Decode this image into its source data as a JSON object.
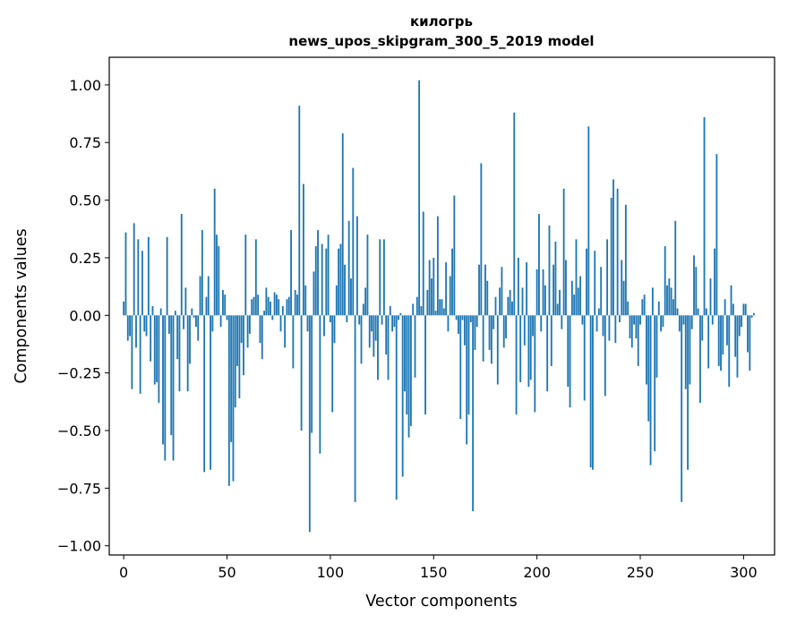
{
  "chart_data": {
    "type": "bar",
    "title": "килогрь",
    "subtitle": "news_upos_skipgram_300_5_2019 model",
    "xlabel": "Vector components",
    "ylabel": "Components values",
    "xlim": [
      -7,
      315
    ],
    "ylim": [
      -1.04,
      1.12
    ],
    "xticks": [
      0,
      50,
      100,
      150,
      200,
      250,
      300
    ],
    "xtick_labels": [
      "0",
      "50",
      "100",
      "150",
      "200",
      "250",
      "300"
    ],
    "yticks": [
      1.0,
      0.75,
      0.5,
      0.25,
      0.0,
      -0.25,
      -0.5,
      -0.75,
      -1.0
    ],
    "ytick_labels": [
      "1.00",
      "0.75",
      "0.50",
      "0.25",
      "0.00",
      "−0.25",
      "−0.50",
      "−0.75",
      "−1.00"
    ],
    "bar_color": "#1f77b4",
    "grid": false,
    "series": [
      {
        "name": "килогрь",
        "x_start": 0,
        "values": [
          0.06,
          0.36,
          -0.11,
          -0.09,
          -0.32,
          0.4,
          -0.14,
          0.33,
          -0.34,
          0.28,
          -0.07,
          -0.09,
          0.34,
          -0.2,
          0.04,
          -0.3,
          -0.29,
          -0.38,
          0.03,
          -0.56,
          -0.63,
          0.34,
          -0.08,
          -0.52,
          -0.63,
          0.02,
          -0.19,
          -0.33,
          0.44,
          -0.06,
          0.12,
          -0.33,
          -0.21,
          0.03,
          -0.01,
          -0.05,
          -0.11,
          0.17,
          0.37,
          -0.68,
          0.08,
          0.17,
          -0.67,
          -0.07,
          0.55,
          0.35,
          0.3,
          -0.05,
          0.11,
          0.09,
          -0.02,
          -0.74,
          -0.55,
          -0.72,
          -0.4,
          -0.22,
          -0.36,
          -0.12,
          -0.26,
          0.35,
          -0.14,
          -0.08,
          0.07,
          0.08,
          0.33,
          0.09,
          -0.12,
          -0.19,
          0.02,
          0.12,
          0.08,
          0.06,
          -0.02,
          0.1,
          0.09,
          0.07,
          -0.07,
          0.04,
          -0.14,
          0.07,
          0.08,
          0.37,
          -0.23,
          0.11,
          0.09,
          0.91,
          -0.5,
          0.57,
          0.13,
          -0.07,
          -0.94,
          -0.51,
          0.19,
          0.3,
          0.37,
          -0.6,
          0.31,
          -0.09,
          0.29,
          0.35,
          -0.03,
          -0.42,
          -0.12,
          0.13,
          0.29,
          0.31,
          0.79,
          0.22,
          -0.03,
          0.41,
          0.16,
          0.64,
          -0.81,
          0.43,
          -0.04,
          -0.21,
          0.05,
          0.12,
          0.35,
          -0.14,
          -0.07,
          -0.18,
          -0.11,
          -0.28,
          0.33,
          -0.04,
          0.33,
          -0.17,
          -0.28,
          0.04,
          -0.07,
          -0.05,
          -0.8,
          -0.02,
          0.01,
          -0.7,
          -0.33,
          -0.43,
          -0.53,
          -0.48,
          0.05,
          -0.27,
          0.08,
          1.02,
          0.04,
          0.45,
          -0.43,
          0.11,
          0.24,
          0.16,
          0.25,
          0.02,
          0.43,
          0.07,
          0.07,
          0.03,
          0.23,
          -0.07,
          0.17,
          0.29,
          0.52,
          -0.02,
          -0.08,
          -0.45,
          -0.02,
          -0.13,
          -0.56,
          -0.43,
          -0.03,
          -0.85,
          -0.15,
          -0.05,
          0.22,
          0.66,
          -0.2,
          0.22,
          0.15,
          -0.15,
          -0.21,
          -0.06,
          0.08,
          -0.3,
          0.12,
          0.21,
          -0.14,
          -0.1,
          0.08,
          0.11,
          0.06,
          0.88,
          -0.43,
          0.25,
          -0.29,
          0.12,
          -0.13,
          0.23,
          -0.31,
          -0.28,
          -0.09,
          -0.42,
          0.2,
          0.44,
          -0.07,
          0.2,
          0.13,
          -0.33,
          0.39,
          -0.22,
          0.22,
          0.32,
          0.05,
          0.11,
          -0.06,
          0.55,
          0.24,
          -0.31,
          -0.4,
          0.15,
          0.09,
          0.33,
          0.12,
          0.17,
          -0.04,
          -0.37,
          0.29,
          0.82,
          -0.66,
          -0.67,
          0.28,
          -0.07,
          0.03,
          0.21,
          -0.09,
          -0.35,
          0.33,
          -0.11,
          0.51,
          0.59,
          -0.12,
          0.55,
          -0.03,
          0.24,
          0.15,
          0.48,
          0.06,
          -0.1,
          -0.14,
          -0.04,
          -0.1,
          -0.22,
          -0.04,
          0.07,
          0.09,
          -0.3,
          -0.46,
          -0.65,
          0.12,
          -0.59,
          -0.27,
          0.06,
          -0.07,
          -0.05,
          0.3,
          0.13,
          0.16,
          0.12,
          0.07,
          0.41,
          0.03,
          -0.07,
          -0.81,
          -0.04,
          -0.32,
          -0.67,
          -0.3,
          -0.06,
          0.26,
          0.21,
          0.03,
          -0.38,
          -0.11,
          0.86,
          0.03,
          -0.23,
          0.16,
          -0.04,
          0.29,
          0.7,
          -0.22,
          -0.24,
          -0.17,
          0.07,
          -0.13,
          -0.31,
          0.13,
          0.05,
          -0.18,
          -0.27,
          -0.09,
          -0.05,
          0.05,
          0.05,
          -0.16,
          -0.24,
          -0.01,
          0.01
        ]
      }
    ]
  }
}
